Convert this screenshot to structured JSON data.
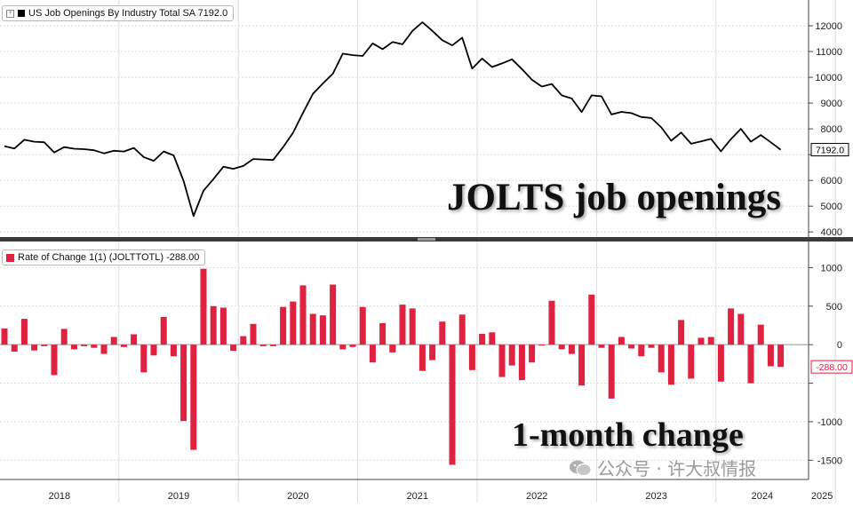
{
  "colors": {
    "line": "#000000",
    "bar": "#e0213f",
    "background": "#ffffff",
    "grid": "#dcdcdc"
  },
  "top_panel": {
    "legend_text": "US Job Openings By Industry Total SA 7192.0",
    "big_label": "JOLTS job openings",
    "last_value_tag": "7192.0"
  },
  "bottom_panel": {
    "legend_text": "Rate of Change 1(1) (JOLTTOTL) -288.00",
    "big_label": "1-month change",
    "last_value_tag": "-288.00"
  },
  "watermark": "公众号 · 许大叔情报",
  "chart_data": [
    {
      "type": "line",
      "series": [
        {
          "name": "US Job Openings By Industry Total SA",
          "values": [
            7330,
            7240,
            7575,
            7500,
            7480,
            7085,
            7290,
            7230,
            7210,
            7170,
            7050,
            7150,
            7120,
            7260,
            6900,
            6760,
            7120,
            6970,
            5980,
            4615,
            5600,
            6050,
            6530,
            6450,
            6560,
            6830,
            6810,
            6790,
            7290,
            7850,
            8620,
            9360,
            9760,
            10140,
            10920,
            10860,
            10830,
            11320,
            11090,
            11370,
            11280,
            11800,
            12140,
            11800,
            11440,
            11240,
            11540,
            10340,
            10730,
            10400,
            10540,
            10700,
            10320,
            9910,
            9640,
            9740,
            9300,
            9180,
            8650,
            9300,
            9260,
            8560,
            8660,
            8610,
            8460,
            8420,
            8060,
            7540,
            7860,
            7420,
            7510,
            7610,
            7130,
            7600,
            8000,
            7500,
            7760,
            7480,
            7192
          ]
        }
      ],
      "x_start": "2018-01",
      "frequency": "monthly",
      "ylim": [
        3800,
        13000
      ],
      "y_ticks": [
        4000,
        5000,
        6000,
        7000,
        8000,
        9000,
        10000,
        11000,
        12000
      ],
      "y_tick_labels": [
        "4000",
        "5000",
        "6000",
        "",
        "8000",
        "9000",
        "10000",
        "11000",
        "12000"
      ],
      "last_value": 7192.0
    },
    {
      "type": "bar",
      "series": [
        {
          "name": "Rate of Change 1(1) (JOLTTOTL)",
          "values": [
            210,
            -90,
            335,
            -75,
            -20,
            -395,
            205,
            -60,
            -20,
            -40,
            -120,
            100,
            -30,
            135,
            -360,
            -140,
            360,
            -150,
            -990,
            -1365,
            985,
            500,
            480,
            -80,
            110,
            270,
            -20,
            -20,
            490,
            560,
            770,
            400,
            380,
            780,
            -60,
            -30,
            490,
            -230,
            280,
            -100,
            520,
            470,
            -340,
            -200,
            300,
            -1560,
            390,
            -330,
            140,
            160,
            -420,
            -270,
            -460,
            -230,
            -10,
            570,
            -60,
            -120,
            -530,
            650,
            -40,
            -700,
            100,
            -50,
            -150,
            -40,
            -360,
            -520,
            320,
            -440,
            90,
            100,
            -480,
            470,
            400,
            -500,
            260,
            -280,
            -288
          ]
        }
      ],
      "x_start": "2018-01",
      "frequency": "monthly",
      "ylim": [
        -1750,
        1270
      ],
      "y_ticks": [
        -1500,
        -1000,
        -500,
        0,
        500,
        1000
      ],
      "y_tick_labels": [
        "-1500",
        "-1000",
        "",
        "0",
        "500",
        "1000"
      ],
      "last_value": -288.0
    }
  ],
  "x_axis": {
    "labels": [
      "2018",
      "2019",
      "2020",
      "2021",
      "2022",
      "2023",
      "2024",
      "2025"
    ]
  }
}
